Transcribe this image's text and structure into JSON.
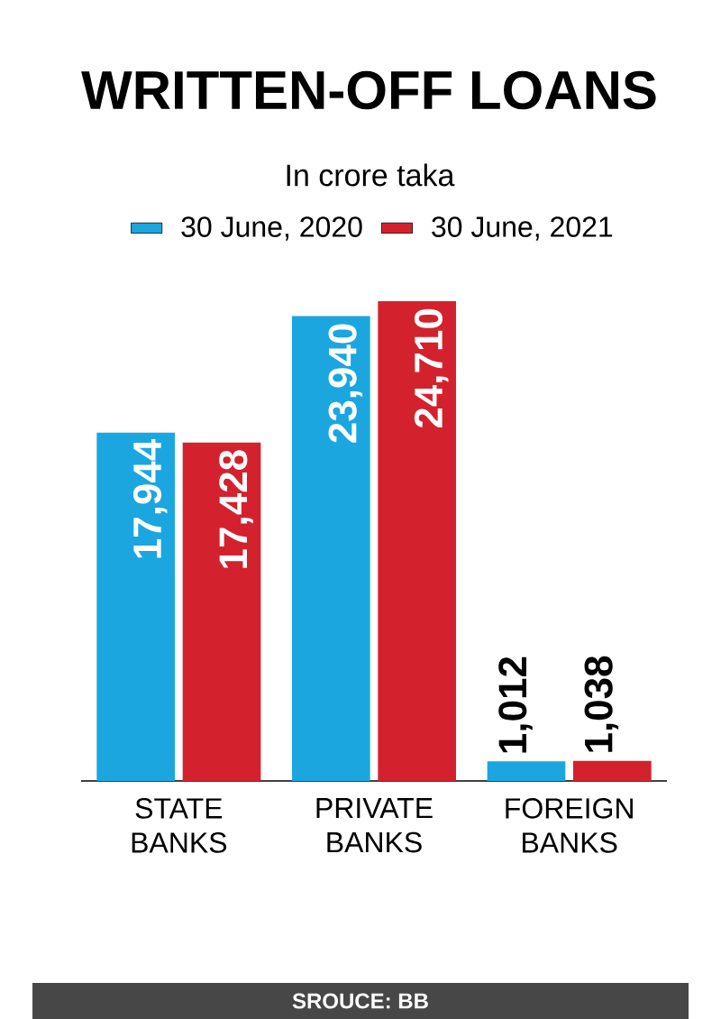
{
  "chart_data": {
    "type": "bar",
    "title": "WRITTEN-OFF LOANS",
    "subtitle": "In crore taka",
    "categories": [
      "STATE BANKS",
      "PRIVATE BANKS",
      "FOREIGN BANKS"
    ],
    "series": [
      {
        "name": "30 June, 2020",
        "color": "#1ba6e0",
        "values": [
          17944,
          23940,
          1012
        ],
        "value_labels": [
          "17,944",
          "23,940",
          "1,012"
        ]
      },
      {
        "name": "30 June, 2021",
        "color": "#d3222e",
        "values": [
          17428,
          24710,
          1038
        ],
        "value_labels": [
          "17,428",
          "24,710",
          "1,038"
        ]
      }
    ],
    "legend": "top",
    "annotations": [
      "SROUCE: BB"
    ]
  }
}
